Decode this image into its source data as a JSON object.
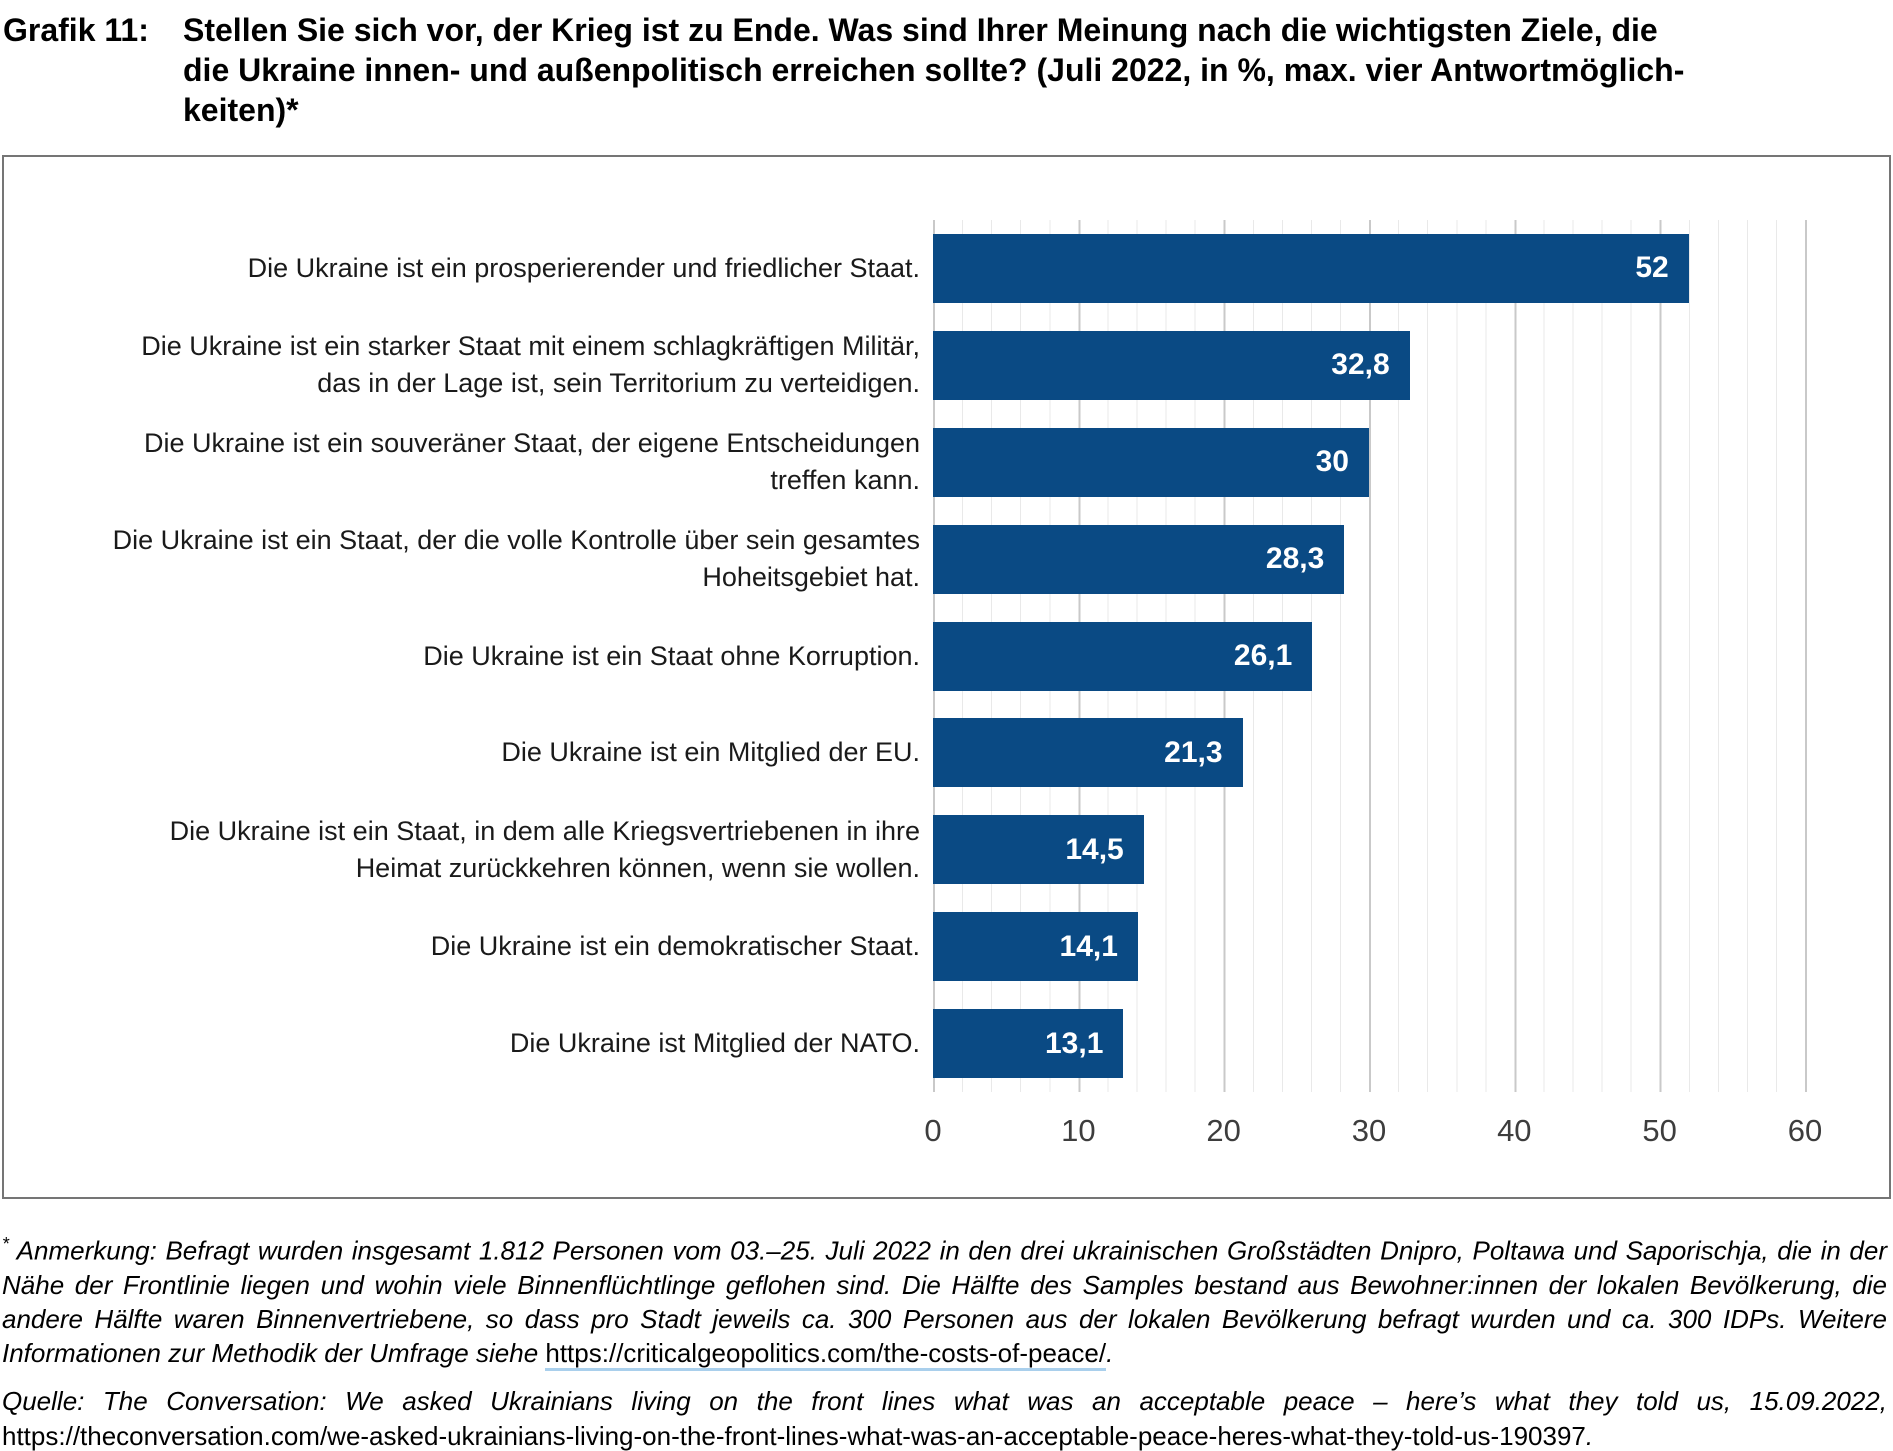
{
  "header": {
    "prefix": "Grafik 11:",
    "title": "Stellen Sie sich vor, der Krieg ist zu Ende. Was sind Ihrer Meinung nach die wichtigsten Ziele, die die Ukraine innen- und außenpolitisch erreichen sollte? (Juli 2022, in %, max. vier Antwortmöglichkeiten)*",
    "title_lines": [
      "Stellen Sie sich vor, der Krieg ist zu Ende. Was sind Ihrer Meinung nach die wichtigsten Ziele, die",
      "die Ukraine innen- und außenpolitisch erreichen sollte? (Juli 2022, in %, max. vier Antwortmöglich-",
      "keiten)*"
    ]
  },
  "chart_data": {
    "type": "bar",
    "orientation": "horizontal",
    "categories": [
      "Die Ukraine ist ein prosperierender und friedlicher Staat.",
      "Die Ukraine ist ein starker Staat mit einem schlagkräftigen Militär, das in der Lage ist, sein Territorium zu verteidigen.",
      "Die Ukraine ist ein souveräner Staat, der eigene Entscheidungen treffen kann.",
      "Die Ukraine ist ein Staat, der die volle Kontrolle über sein gesamtes Hoheitsgebiet hat.",
      "Die Ukraine ist ein Staat ohne Korruption.",
      "Die Ukraine ist ein Mitglied der EU.",
      "Die Ukraine ist ein Staat, in dem alle Kriegsvertriebenen in ihre Heimat zurückkehren können, wenn sie wollen.",
      "Die Ukraine ist ein demokratischer Staat.",
      "Die Ukraine ist Mitglied der NATO."
    ],
    "category_label_lines": [
      [
        "Die Ukraine ist ein prosperierender und friedlicher Staat."
      ],
      [
        "Die Ukraine ist ein starker Staat mit einem schlagkräftigen Militär,",
        "das in der Lage ist, sein Territorium zu verteidigen."
      ],
      [
        "Die Ukraine ist ein souveräner Staat, der eigene Entscheidungen",
        "treffen kann."
      ],
      [
        "Die Ukraine ist ein Staat, der die volle Kontrolle über sein gesamtes",
        "Hoheitsgebiet hat."
      ],
      [
        "Die Ukraine ist ein Staat ohne Korruption."
      ],
      [
        "Die Ukraine ist ein Mitglied der EU."
      ],
      [
        "Die Ukraine ist ein Staat, in dem alle Kriegsvertriebenen in ihre",
        "Heimat zurückkehren können, wenn sie wollen."
      ],
      [
        "Die Ukraine ist ein demokratischer Staat."
      ],
      [
        "Die Ukraine ist Mitglied der NATO."
      ]
    ],
    "values": [
      52,
      32.8,
      30,
      28.3,
      26.1,
      21.3,
      14.5,
      14.1,
      13.1
    ],
    "value_labels": [
      "52",
      "32,8",
      "30",
      "28,3",
      "26,1",
      "21,3",
      "14,5",
      "14,1",
      "13,1"
    ],
    "xlim": [
      0,
      60
    ],
    "x_ticks": [
      0,
      10,
      20,
      30,
      40,
      50,
      60
    ],
    "grid": "vertical; minor every 2 units, major every 10 units",
    "legend": "none",
    "bar_color": "#0a4a84",
    "value_label_color": "#ffffff"
  },
  "footnotes": {
    "anmerkung": {
      "marker": "*",
      "text": " Anmerkung: Befragt wurden insgesamt 1.812 Personen vom 03.–25. Juli 2022 in den drei ukrainischen Großstädten Dnipro, Poltawa und Saporischja, die in der Nähe der Frontlinie liegen und wohin viele Binnenflüchtlinge geflohen sind. Die Hälfte des Samples bestand aus Bewohner:innen der lokalen Bevölkerung, die andere Hälfte waren Binnenvertriebene, so dass pro Stadt jeweils ca. 300 Personen aus der lokalen Bevölkerung befragt wurden und ca. 300 IDPs. Weitere Informationen zur Methodik der Umfrage siehe ",
      "link": "https://criticalgeopolitics.com/the-costs-of-peace/",
      "after_link": "."
    },
    "quelle": {
      "text": "Quelle: The Conversation: We asked Ukrainians living on the front lines what was an acceptable peace – here’s what they told us, 15.09.2022, ",
      "link": "https://theconversation.com/we-asked-ukrainians-living-on-the-front-lines-what-was-an-acceptable-peace-heres-what-they-told-us-190397",
      "after_link": "."
    }
  },
  "colors": {
    "bar": "#0a4a84",
    "value_text": "#ffffff",
    "grid_minor": "#e9e9e9",
    "grid_major": "#c9c9c9",
    "frame_border": "#757575",
    "link_underline": "#a9cfec"
  }
}
